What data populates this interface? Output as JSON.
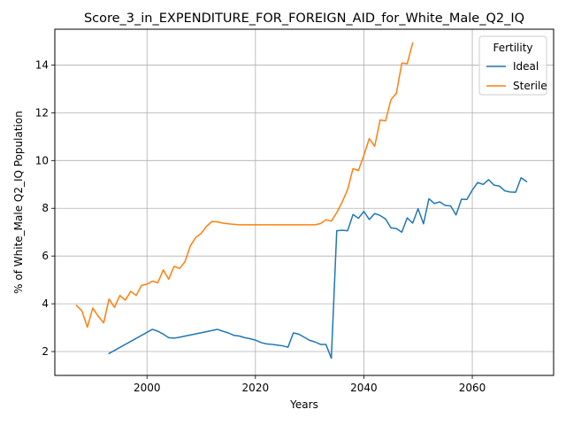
{
  "chart_data": {
    "type": "line",
    "title": "Score_3_in_EXPENDITURE_FOR_FOREIGN_AID_for_White_Male_Q2_IQ",
    "xlabel": "Years",
    "ylabel": "% of White_Male Q2_IQ Population",
    "xlim": [
      1983,
      2075
    ],
    "ylim": [
      1.0,
      15.5
    ],
    "xticks": [
      2000,
      2020,
      2040,
      2060
    ],
    "yticks": [
      2,
      4,
      6,
      8,
      10,
      12,
      14
    ],
    "grid": true,
    "legend": {
      "title": "Fertility",
      "placement": "top-right"
    },
    "series": [
      {
        "name": "Ideal",
        "color": "#1f77b4",
        "x": [
          1993,
          2001,
          2002,
          2003,
          2004,
          2005,
          2006,
          2013,
          2014,
          2015,
          2016,
          2017,
          2018,
          2019,
          2020,
          2021,
          2022,
          2023,
          2024,
          2025,
          2026,
          2027,
          2028,
          2029,
          2030,
          2031,
          2032,
          2033,
          2034,
          2035,
          2036,
          2037,
          2038,
          2039,
          2040,
          2041,
          2042,
          2043,
          2044,
          2045,
          2046,
          2047,
          2048,
          2049,
          2050,
          2051,
          2052,
          2053,
          2054,
          2055,
          2056,
          2057,
          2058,
          2059,
          2060,
          2061,
          2062,
          2063,
          2064,
          2065,
          2066,
          2067,
          2068,
          2069,
          2070
        ],
        "values": [
          1.92,
          2.93,
          2.85,
          2.73,
          2.58,
          2.56,
          2.6,
          2.93,
          2.85,
          2.78,
          2.68,
          2.65,
          2.58,
          2.54,
          2.48,
          2.38,
          2.32,
          2.3,
          2.27,
          2.24,
          2.18,
          2.78,
          2.73,
          2.6,
          2.47,
          2.4,
          2.3,
          2.3,
          1.72,
          7.06,
          7.08,
          7.06,
          7.74,
          7.58,
          7.87,
          7.53,
          7.78,
          7.7,
          7.55,
          7.18,
          7.15,
          7.0,
          7.6,
          7.38,
          7.98,
          7.35,
          8.4,
          8.2,
          8.27,
          8.12,
          8.1,
          7.72,
          8.38,
          8.37,
          8.76,
          9.08,
          9.0,
          9.2,
          8.97,
          8.93,
          8.73,
          8.68,
          8.67,
          9.28,
          9.12
        ]
      },
      {
        "name": "Sterile",
        "color": "#ff7f0e",
        "x": [
          1987,
          1988,
          1989,
          1990,
          1991,
          1992,
          1993,
          1994,
          1995,
          1996,
          1997,
          1998,
          1999,
          2000,
          2001,
          2002,
          2003,
          2004,
          2005,
          2006,
          2007,
          2008,
          2009,
          2010,
          2011,
          2012,
          2013,
          2014,
          2015,
          2016,
          2017,
          2018,
          2019,
          2020,
          2021,
          2022,
          2023,
          2024,
          2025,
          2026,
          2027,
          2028,
          2029,
          2030,
          2031,
          2032,
          2033,
          2034,
          2035,
          2036,
          2037,
          2038,
          2039,
          2040,
          2041,
          2042,
          2043,
          2044,
          2045,
          2046,
          2047,
          2048,
          2049
        ],
        "values": [
          3.93,
          3.7,
          3.02,
          3.82,
          3.48,
          3.2,
          4.2,
          3.85,
          4.35,
          4.15,
          4.52,
          4.35,
          4.77,
          4.82,
          4.95,
          4.88,
          5.42,
          5.03,
          5.57,
          5.48,
          5.76,
          6.43,
          6.78,
          6.95,
          7.25,
          7.45,
          7.43,
          7.38,
          7.35,
          7.33,
          7.31,
          7.31,
          7.31,
          7.31,
          7.31,
          7.31,
          7.31,
          7.31,
          7.31,
          7.31,
          7.31,
          7.31,
          7.31,
          7.31,
          7.31,
          7.36,
          7.52,
          7.46,
          7.82,
          8.26,
          8.78,
          9.66,
          9.58,
          10.22,
          10.92,
          10.6,
          11.7,
          11.66,
          12.55,
          12.82,
          14.08,
          14.06,
          14.92
        ]
      }
    ]
  }
}
